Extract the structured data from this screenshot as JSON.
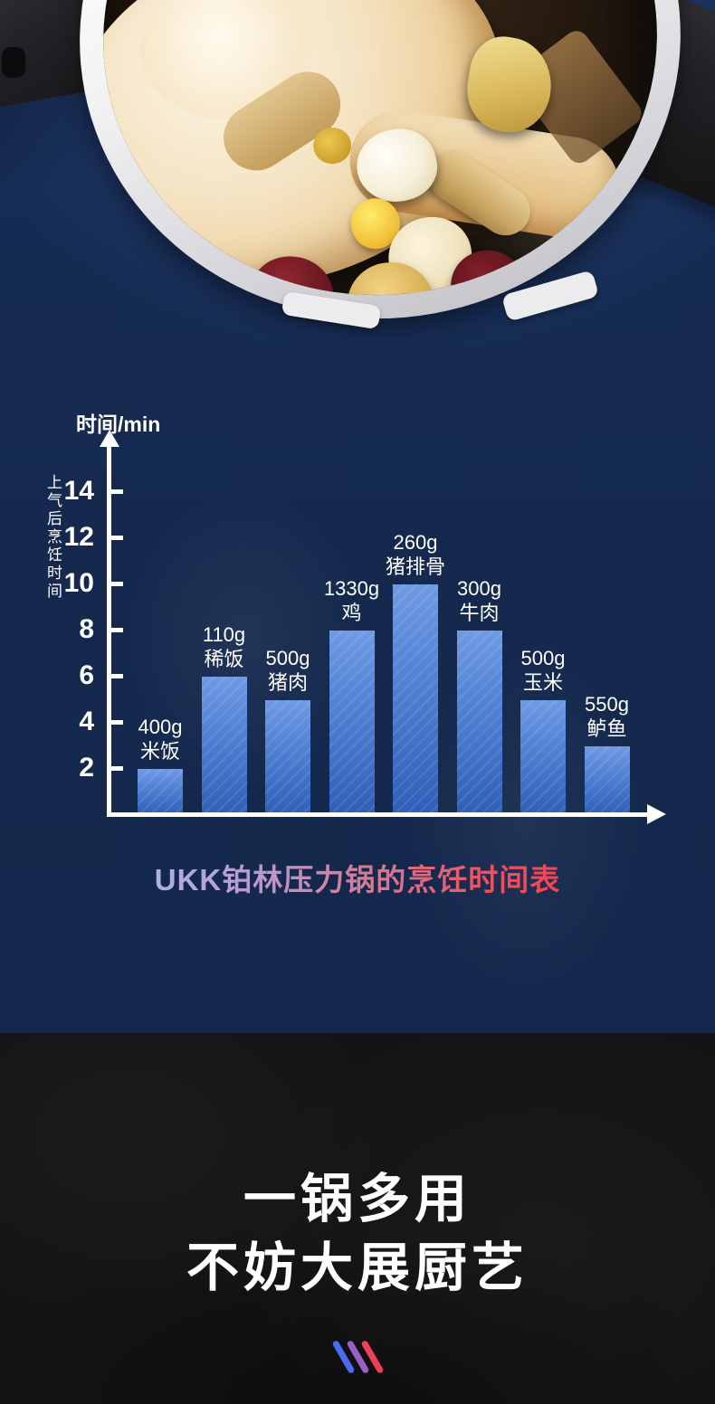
{
  "chart_data": {
    "type": "bar",
    "title": "UKK铂林压力锅的烹饪时间表",
    "y_axis_title": "时间/min",
    "y_axis_label_vertical": "上气后烹饪时间",
    "unit": "min",
    "grid": false,
    "legend": false,
    "ylim": [
      0,
      16
    ],
    "y_ticks": [
      2,
      4,
      6,
      8,
      10,
      12,
      14
    ],
    "bars": [
      {
        "weight": "400g",
        "food": "米饭",
        "minutes": 2
      },
      {
        "weight": "110g",
        "food": "稀饭",
        "minutes": 6
      },
      {
        "weight": "500g",
        "food": "猪肉",
        "minutes": 5
      },
      {
        "weight": "1330g",
        "food": "鸡",
        "minutes": 8
      },
      {
        "weight": "260g",
        "food": "猪排骨",
        "minutes": 10
      },
      {
        "weight": "300g",
        "food": "牛肉",
        "minutes": 8
      },
      {
        "weight": "500g",
        "food": "玉米",
        "minutes": 5
      },
      {
        "weight": "550g",
        "food": "鲈鱼",
        "minutes": 3
      }
    ]
  },
  "footer": {
    "headline_line1": "一锅多用",
    "headline_line2": "不妨大展厨艺"
  },
  "colors": {
    "page_background": "#15294e",
    "axis_color": "#ffffff",
    "bar_gradient_top": "#6f9ae4",
    "bar_gradient_bottom": "#2e5fb8",
    "title_gradient_start": "#a9b7ec",
    "title_gradient_mid": "#d47b94",
    "title_gradient_end": "#f6404b",
    "footer_background": "#141416",
    "footer_text": "#ffffff",
    "slash_colors": [
      "#4a6cf0",
      "#9a5fc4",
      "#ee3f55"
    ]
  }
}
